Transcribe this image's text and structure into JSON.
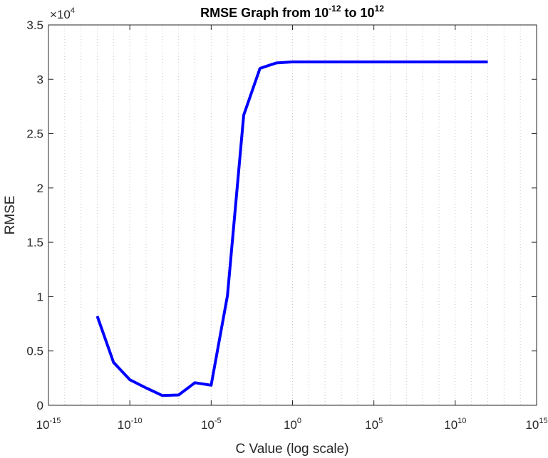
{
  "chart_data": {
    "type": "line",
    "title": {
      "prefix": "RMSE Graph from 10",
      "exp1": "-12",
      "middle": " to 10",
      "exp2": "12"
    },
    "xlabel": "C Value (log scale)",
    "ylabel": "RMSE",
    "x_scale": "log",
    "xlim": [
      1e-15,
      1000000000000000.0
    ],
    "ylim": [
      0,
      35000
    ],
    "y_multiplier": {
      "base": "10",
      "exp": "4"
    },
    "grid": "x-only, dotted (major and minor)",
    "x_ticks": [
      {
        "base": "10",
        "exp": "-15",
        "value": 1e-15
      },
      {
        "base": "10",
        "exp": "-10",
        "value": 1e-10
      },
      {
        "base": "10",
        "exp": "-5",
        "value": 1e-05
      },
      {
        "base": "10",
        "exp": "0",
        "value": 1
      },
      {
        "base": "10",
        "exp": "5",
        "value": 100000.0
      },
      {
        "base": "10",
        "exp": "10",
        "value": 10000000000.0
      },
      {
        "base": "10",
        "exp": "15",
        "value": 1000000000000000.0
      }
    ],
    "y_ticks": [
      {
        "label": "0",
        "value": 0
      },
      {
        "label": "0.5",
        "value": 5000
      },
      {
        "label": "1",
        "value": 10000
      },
      {
        "label": "1.5",
        "value": 15000
      },
      {
        "label": "2",
        "value": 20000
      },
      {
        "label": "2.5",
        "value": 25000
      },
      {
        "label": "3",
        "value": 30000
      },
      {
        "label": "3.5",
        "value": 35000
      }
    ],
    "series": [
      {
        "color": "#0000ff",
        "x": [
          1e-12,
          1e-11,
          1e-10,
          1e-09,
          1e-08,
          1e-07,
          1e-06,
          1e-05,
          0.0001,
          0.001,
          0.01,
          0.1,
          1,
          10,
          100,
          1000.0,
          10000.0,
          100000.0,
          1000000.0,
          10000000.0,
          100000000.0,
          1000000000.0,
          10000000000.0,
          100000000000.0,
          1000000000000.0
        ],
        "y": [
          8200,
          3950,
          2350,
          1600,
          900,
          950,
          2080,
          1850,
          10100,
          26700,
          31000,
          31500,
          31600,
          31600,
          31600,
          31600,
          31600,
          31600,
          31600,
          31600,
          31600,
          31600,
          31600,
          31600,
          31600
        ]
      }
    ]
  }
}
